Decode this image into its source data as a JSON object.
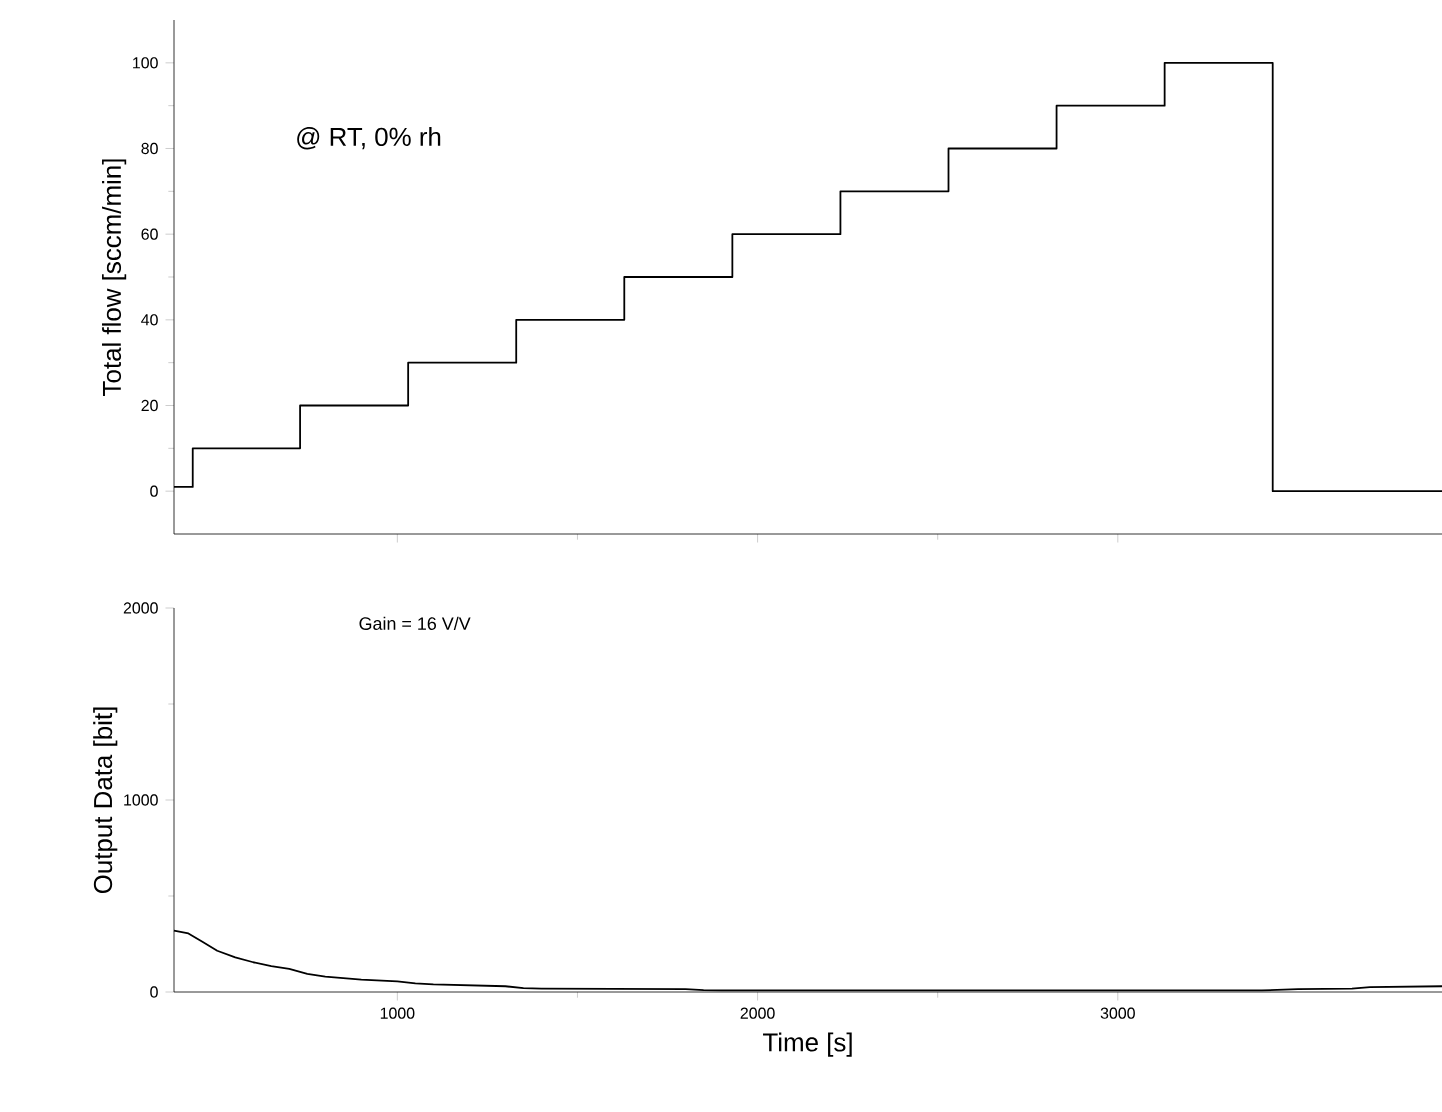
{
  "chart_data": [
    {
      "type": "step",
      "ylabel": "Total flow [sccm/min]",
      "annotations": [
        "@ RT, 0% rh"
      ],
      "x": [
        380,
        432,
        730,
        1030,
        1330,
        1630,
        1930,
        2230,
        2530,
        2830,
        3130,
        3430,
        3900
      ],
      "values": [
        1,
        10,
        20,
        30,
        40,
        50,
        60,
        70,
        80,
        90,
        100,
        0,
        0
      ],
      "color": "#000000",
      "xlim": [
        380,
        3900
      ],
      "ylim": [
        -10,
        110
      ],
      "xticks": [
        1000,
        2000,
        3000
      ],
      "yticks": [
        0,
        20,
        40,
        60,
        80,
        100
      ],
      "tick_labels": "y"
    },
    {
      "type": "line",
      "xlabel": "Time [s]",
      "ylabel": "Output Data [bit]",
      "annotations": [
        "Gain = 16 V/V"
      ],
      "x": [
        380,
        420,
        460,
        500,
        550,
        600,
        650,
        700,
        750,
        800,
        900,
        1000,
        1050,
        1100,
        1200,
        1300,
        1350,
        1400,
        1600,
        1800,
        1850,
        1900,
        2200,
        2600,
        3000,
        3400,
        3500,
        3650,
        3700,
        3900
      ],
      "values": [
        320,
        305,
        260,
        215,
        180,
        155,
        135,
        120,
        95,
        80,
        65,
        55,
        45,
        40,
        35,
        30,
        20,
        18,
        16,
        15,
        10,
        8,
        8,
        8,
        8,
        8,
        15,
        18,
        25,
        30
      ],
      "color": "#000000",
      "xlim": [
        380,
        3900
      ],
      "ylim": [
        0,
        2000
      ],
      "xticks": [
        1000,
        2000,
        3000
      ],
      "yticks": [
        0,
        1000,
        2000
      ]
    }
  ]
}
